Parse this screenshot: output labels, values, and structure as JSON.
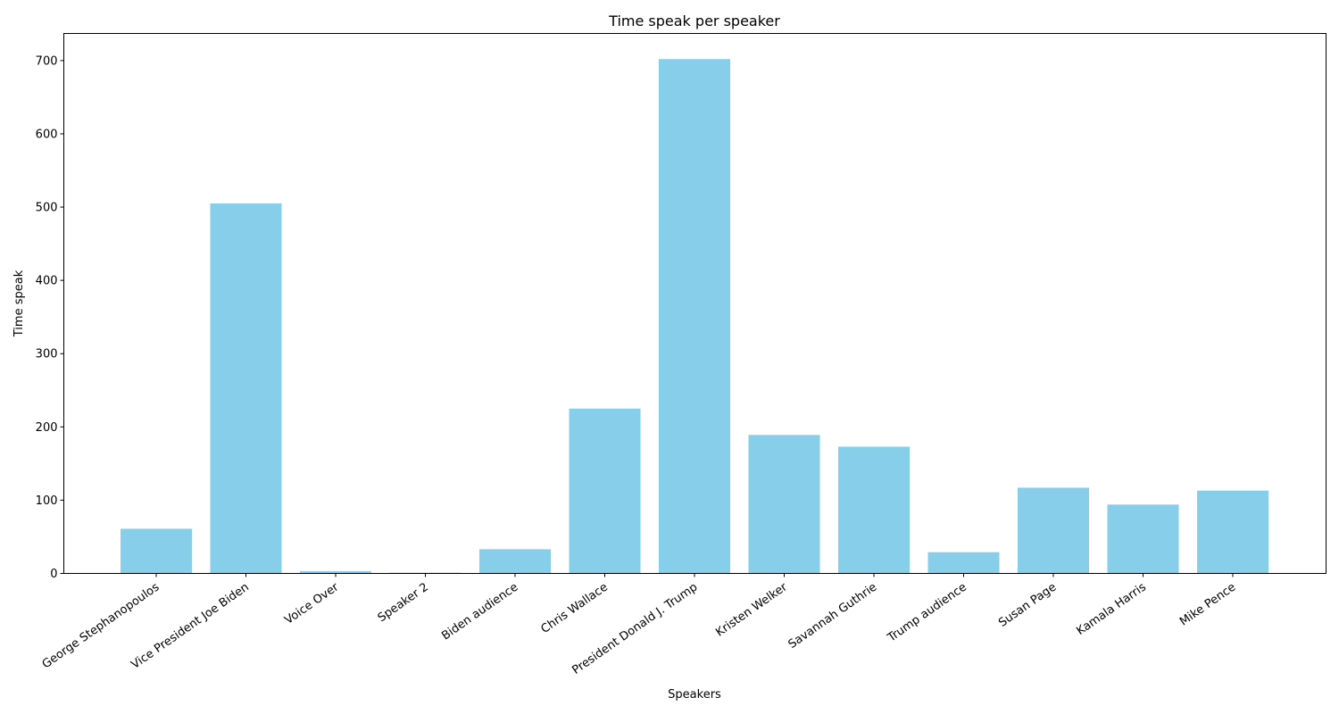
{
  "chart_data": {
    "type": "bar",
    "title": "Time speak per speaker",
    "xlabel": "Speakers",
    "ylabel": "Time speak",
    "categories": [
      "George Stephanopoulos",
      "Vice President Joe Biden",
      "Voice Over",
      "Speaker 2",
      "Biden audience",
      "Chris Wallace",
      "President Donald J. Trump",
      "Kristen Welker",
      "Savannah Guthrie",
      "Trump audience",
      "Susan Page",
      "Kamala Harris",
      "Mike Pence"
    ],
    "values": [
      61,
      505,
      3,
      1,
      33,
      225,
      702,
      189,
      173,
      29,
      117,
      94,
      113
    ],
    "ylim": [
      0,
      737
    ],
    "yticks": [
      0,
      100,
      200,
      300,
      400,
      500,
      600,
      700
    ],
    "bar_color": "#87CEEB",
    "grid": false
  }
}
